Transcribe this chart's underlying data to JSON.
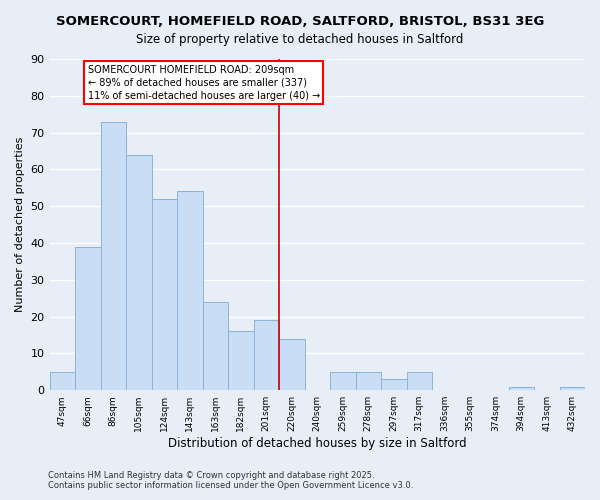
{
  "title": "SOMERCOURT, HOMEFIELD ROAD, SALTFORD, BRISTOL, BS31 3EG",
  "subtitle": "Size of property relative to detached houses in Saltford",
  "xlabel": "Distribution of detached houses by size in Saltford",
  "ylabel": "Number of detached properties",
  "bar_labels": [
    "47sqm",
    "66sqm",
    "86sqm",
    "105sqm",
    "124sqm",
    "143sqm",
    "163sqm",
    "182sqm",
    "201sqm",
    "220sqm",
    "240sqm",
    "259sqm",
    "278sqm",
    "297sqm",
    "317sqm",
    "336sqm",
    "355sqm",
    "374sqm",
    "394sqm",
    "413sqm",
    "432sqm"
  ],
  "bar_values": [
    5,
    39,
    73,
    64,
    52,
    54,
    24,
    16,
    19,
    14,
    0,
    5,
    5,
    3,
    5,
    0,
    0,
    0,
    1,
    0,
    1
  ],
  "bar_color": "#c9ddf5",
  "bar_edge_color": "#8ab4d8",
  "ylim": [
    0,
    90
  ],
  "yticks": [
    0,
    10,
    20,
    30,
    40,
    50,
    60,
    70,
    80,
    90
  ],
  "vline_x": 8.5,
  "vline_color": "#cc0000",
  "annotation_title": "SOMERCOURT HOMEFIELD ROAD: 209sqm",
  "annotation_line1": "← 89% of detached houses are smaller (337)",
  "annotation_line2": "11% of semi-detached houses are larger (40) →",
  "footer1": "Contains HM Land Registry data © Crown copyright and database right 2025.",
  "footer2": "Contains public sector information licensed under the Open Government Licence v3.0.",
  "bg_color": "#e8eef8",
  "grid_color": "#ffffff",
  "title_fontsize": 9.5,
  "subtitle_fontsize": 8.5,
  "ylabel_fontsize": 8,
  "xlabel_fontsize": 8.5
}
